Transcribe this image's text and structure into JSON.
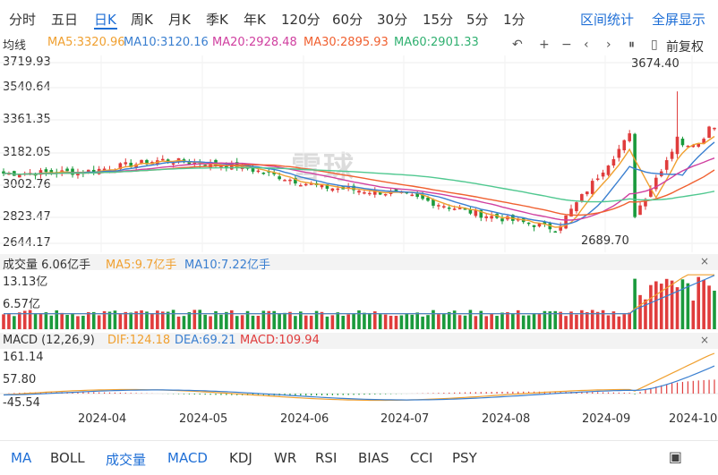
{
  "tabs": [
    "分时",
    "五日",
    "日K",
    "周K",
    "月K",
    "季K",
    "年K",
    "120分",
    "60分",
    "30分",
    "15分",
    "5分",
    "1分"
  ],
  "active_tab": "日K",
  "right_tabs": [
    "区间统计",
    "全屏显示"
  ],
  "legend": {
    "title": "均线",
    "ma5": "MA5:3320.96",
    "ma10": "MA10:3120.16",
    "ma20": "MA20:2928.48",
    "ma30": "MA30:2895.93",
    "ma60": "MA60:2901.33"
  },
  "colors": {
    "up": "#e03c3c",
    "down": "#1a9a3c",
    "ma5": "#f0a030",
    "ma10": "#3a7fd0",
    "ma20": "#d040a0",
    "ma30": "#f06030",
    "ma60": "#50c890",
    "accent": "#1f6fd6"
  },
  "toolbar": {
    "restore_label": "前复权"
  },
  "price_axis": [
    "3719.93",
    "3540.64",
    "3361.35",
    "3182.05",
    "3002.76",
    "2823.47",
    "2644.17"
  ],
  "annotations": {
    "high": "3674.40",
    "low": "2689.70"
  },
  "volume": {
    "title": "成交量 6.06亿手",
    "ma5": "MA5:9.7亿手",
    "ma10": "MA10:7.22亿手",
    "axis": [
      "13.13亿",
      "6.57亿"
    ]
  },
  "macd": {
    "title": "MACD (12,26,9)",
    "dif": "DIF:124.18",
    "dea": "DEA:69.21",
    "macd": "MACD:109.94",
    "axis": [
      "161.14",
      "57.80",
      "-45.54"
    ]
  },
  "dates": [
    "2024-04",
    "2024-05",
    "2024-06",
    "2024-07",
    "2024-08",
    "2024-09",
    "2024-10"
  ],
  "footer_tabs": [
    "MA",
    "BOLL",
    "成交量",
    "MACD",
    "KDJ",
    "WR",
    "RSI",
    "BIAS",
    "CCI",
    "PSY"
  ],
  "watermark": "雪球",
  "chart_data": {
    "type": "candlestick",
    "ylim": [
      2644.17,
      3719.93
    ],
    "x": [
      "2024-03-20",
      "2024-04-01",
      "2024-05-06",
      "2024-06-03",
      "2024-07-01",
      "2024-08-01",
      "2024-09-02",
      "2024-09-18",
      "2024-09-30",
      "2024-10-10"
    ],
    "close": [
      3060,
      3070,
      3140,
      3100,
      2980,
      2940,
      2820,
      2730,
      3330,
      3300
    ],
    "high_value": 3674.4,
    "low_value": 2689.7
  }
}
